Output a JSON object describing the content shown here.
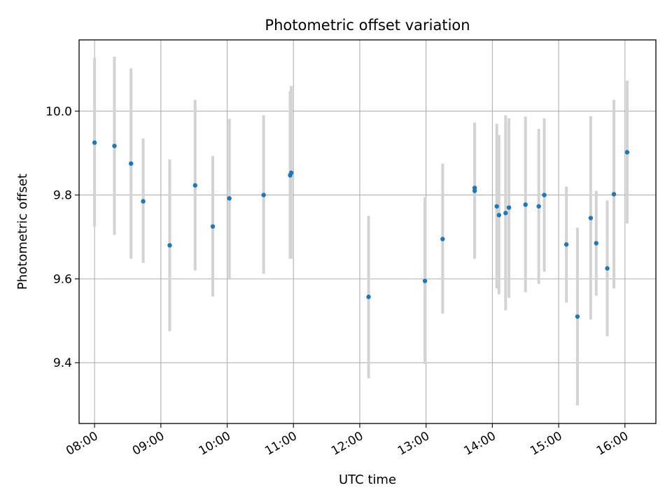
{
  "chart_data": {
    "type": "scatter",
    "title": "Photometric offset variation",
    "xlabel": "UTC time",
    "ylabel": "Photometric offset",
    "xlim": [
      "07:46",
      "16:28"
    ],
    "ylim": [
      9.255,
      10.17
    ],
    "x_ticks": [
      "08:00",
      "09:00",
      "10:00",
      "11:00",
      "12:00",
      "13:00",
      "14:00",
      "15:00",
      "16:00"
    ],
    "y_ticks": [
      9.4,
      9.6,
      9.8,
      10.0
    ],
    "y_tick_labels": [
      "9.4",
      "9.6",
      "9.8",
      "10.0"
    ],
    "grid": true,
    "colors": {
      "marker": "#1f77b4",
      "errorbar": "#d3d3d3",
      "grid": "#b0b0b0"
    },
    "series": [
      {
        "points": [
          {
            "x": "08:00",
            "y": 9.925,
            "ylow": 9.725,
            "yhigh": 10.127
          },
          {
            "x": "08:18",
            "y": 9.917,
            "ylow": 9.705,
            "yhigh": 10.13
          },
          {
            "x": "08:33",
            "y": 9.875,
            "ylow": 9.648,
            "yhigh": 10.102
          },
          {
            "x": "08:44",
            "y": 9.785,
            "ylow": 9.638,
            "yhigh": 9.935
          },
          {
            "x": "09:08",
            "y": 9.68,
            "ylow": 9.475,
            "yhigh": 9.885
          },
          {
            "x": "09:31",
            "y": 9.823,
            "ylow": 9.62,
            "yhigh": 10.027
          },
          {
            "x": "09:47",
            "y": 9.725,
            "ylow": 9.558,
            "yhigh": 9.893
          },
          {
            "x": "10:02",
            "y": 9.792,
            "ylow": 9.598,
            "yhigh": 9.982
          },
          {
            "x": "10:33",
            "y": 9.8,
            "ylow": 9.612,
            "yhigh": 9.99
          },
          {
            "x": "10:57",
            "y": 9.847,
            "ylow": 9.648,
            "yhigh": 10.048
          },
          {
            "x": "10:58",
            "y": 9.853,
            "ylow": 9.648,
            "yhigh": 10.06
          },
          {
            "x": "12:08",
            "y": 9.557,
            "ylow": 9.363,
            "yhigh": 9.75
          },
          {
            "x": "12:59",
            "y": 9.595,
            "ylow": 9.397,
            "yhigh": 9.795
          },
          {
            "x": "13:15",
            "y": 9.695,
            "ylow": 9.517,
            "yhigh": 9.875
          },
          {
            "x": "13:44",
            "y": 9.817,
            "ylow": 9.648,
            "yhigh": 9.973
          },
          {
            "x": "13:44",
            "y": 9.81,
            "ylow": 9.648,
            "yhigh": 9.973
          },
          {
            "x": "14:04",
            "y": 9.773,
            "ylow": 9.577,
            "yhigh": 9.97
          },
          {
            "x": "14:06",
            "y": 9.752,
            "ylow": 9.563,
            "yhigh": 9.943
          },
          {
            "x": "14:12",
            "y": 9.757,
            "ylow": 9.525,
            "yhigh": 9.99
          },
          {
            "x": "14:15",
            "y": 9.77,
            "ylow": 9.555,
            "yhigh": 9.983
          },
          {
            "x": "14:30",
            "y": 9.777,
            "ylow": 9.568,
            "yhigh": 9.987
          },
          {
            "x": "14:42",
            "y": 9.773,
            "ylow": 9.588,
            "yhigh": 9.958
          },
          {
            "x": "14:47",
            "y": 9.8,
            "ylow": 9.617,
            "yhigh": 9.983
          },
          {
            "x": "15:07",
            "y": 9.682,
            "ylow": 9.543,
            "yhigh": 9.82
          },
          {
            "x": "15:17",
            "y": 9.51,
            "ylow": 9.298,
            "yhigh": 9.722
          },
          {
            "x": "15:29",
            "y": 9.745,
            "ylow": 9.503,
            "yhigh": 9.988
          },
          {
            "x": "15:34",
            "y": 9.685,
            "ylow": 9.56,
            "yhigh": 9.81
          },
          {
            "x": "15:44",
            "y": 9.625,
            "ylow": 9.463,
            "yhigh": 9.787
          },
          {
            "x": "15:50",
            "y": 9.802,
            "ylow": 9.577,
            "yhigh": 10.027
          },
          {
            "x": "16:02",
            "y": 9.902,
            "ylow": 9.732,
            "yhigh": 10.073
          }
        ]
      }
    ]
  }
}
